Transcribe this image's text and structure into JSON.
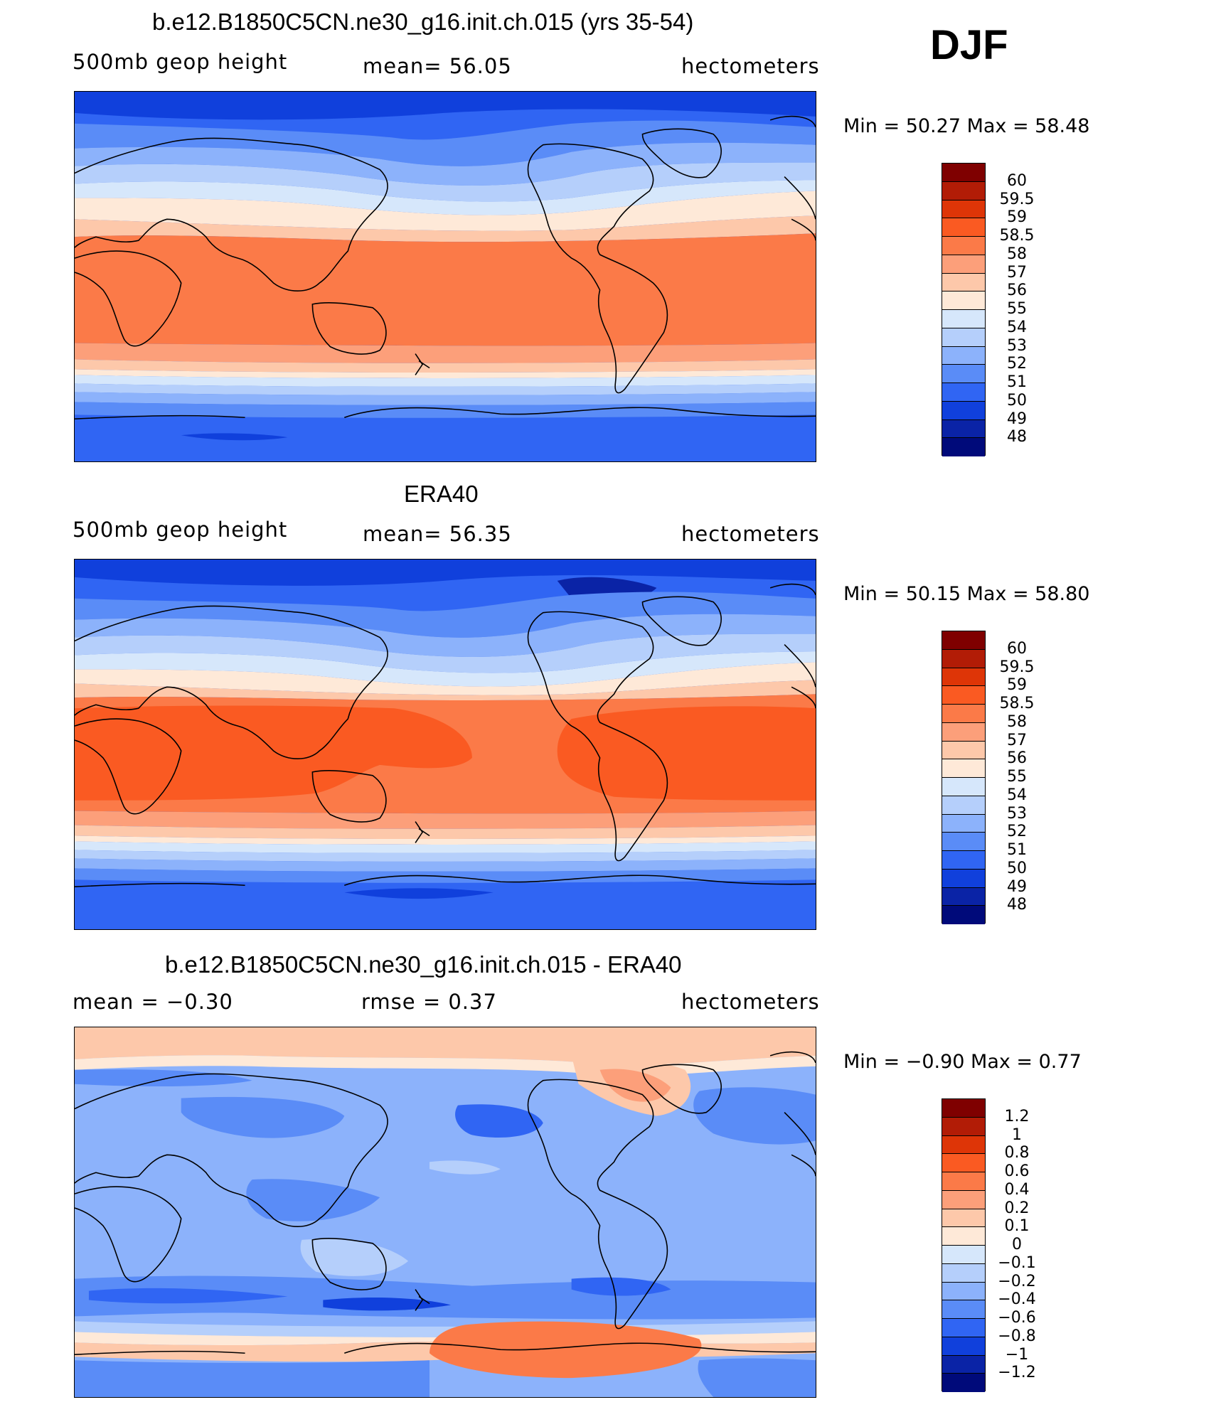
{
  "season_label": "DJF",
  "panels": [
    {
      "title": "b.e12.B1850C5CN.ne30_g16.init.ch.015 (yrs 35-54)",
      "left_label": "500mb  geop  height",
      "center_label": "mean=   56.05",
      "right_label": "hectometers",
      "min_max": "Min  =    50.27  Max  =    58.48",
      "colorbar": {
        "labels": [
          "60",
          "59.5",
          "59",
          "58.5",
          "58",
          "57",
          "56",
          "55",
          "54",
          "53",
          "52",
          "51",
          "50",
          "49",
          "48"
        ],
        "colors": [
          "#7f0000",
          "#b21c06",
          "#de3507",
          "#fa5a22",
          "#fb7a48",
          "#fc9f7a",
          "#fdc8aa",
          "#fee9d8",
          "#d6e7fb",
          "#b5cffb",
          "#8cb2fb",
          "#5a8cf7",
          "#3065f3",
          "#1040dc",
          "#0a23a6",
          "#000a7a"
        ]
      }
    },
    {
      "title": "ERA40",
      "left_label": "500mb  geop  height",
      "center_label": "mean=   56.35",
      "right_label": "hectometers",
      "min_max": "Min  =    50.15  Max  =    58.80",
      "colorbar": {
        "labels": [
          "60",
          "59.5",
          "59",
          "58.5",
          "58",
          "57",
          "56",
          "55",
          "54",
          "53",
          "52",
          "51",
          "50",
          "49",
          "48"
        ],
        "colors": [
          "#7f0000",
          "#b21c06",
          "#de3507",
          "#fa5a22",
          "#fb7a48",
          "#fc9f7a",
          "#fdc8aa",
          "#fee9d8",
          "#d6e7fb",
          "#b5cffb",
          "#8cb2fb",
          "#5a8cf7",
          "#3065f3",
          "#1040dc",
          "#0a23a6",
          "#000a7a"
        ]
      }
    },
    {
      "title": "b.e12.B1850C5CN.ne30_g16.init.ch.015 - ERA40",
      "left_label": "mean  =    −0.30",
      "center_label": "rmse  =     0.37",
      "right_label": "hectometers",
      "min_max": "Min  =   −0.90  Max  =     0.77",
      "colorbar": {
        "labels": [
          "1.2",
          "1",
          "0.8",
          "0.6",
          "0.4",
          "0.2",
          "0.1",
          "0",
          "−0.1",
          "−0.2",
          "−0.4",
          "−0.6",
          "−0.8",
          "−1",
          "−1.2"
        ],
        "colors": [
          "#7f0000",
          "#b21c06",
          "#de3507",
          "#fa5a22",
          "#fb7a48",
          "#fc9f7a",
          "#fdc8aa",
          "#fee9d8",
          "#d6e7fb",
          "#b5cffb",
          "#8cb2fb",
          "#5a8cf7",
          "#3065f3",
          "#1040dc",
          "#0a23a6",
          "#000a7a"
        ]
      }
    }
  ]
}
